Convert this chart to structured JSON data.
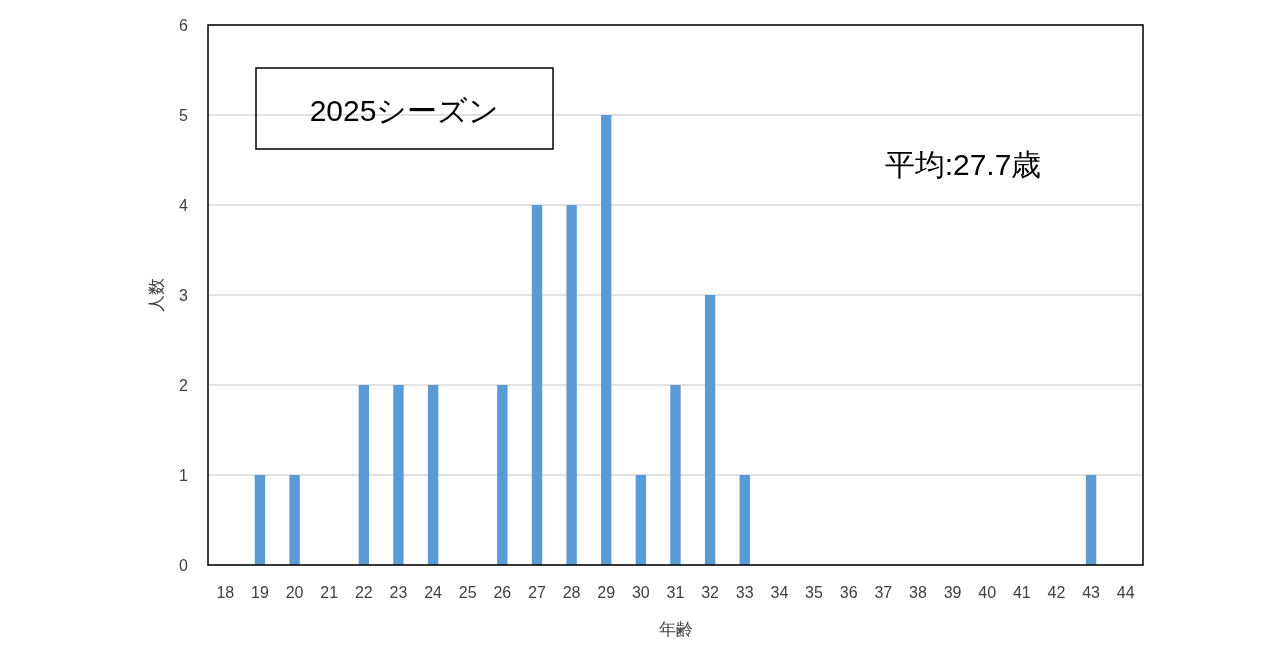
{
  "chart_data": {
    "type": "bar",
    "title": "2025シーズン",
    "xlabel": "年齢",
    "ylabel": "人数",
    "annotations": [
      "平均:27.7歳"
    ],
    "categories": [
      "18",
      "19",
      "20",
      "21",
      "22",
      "23",
      "24",
      "25",
      "26",
      "27",
      "28",
      "29",
      "30",
      "31",
      "32",
      "33",
      "34",
      "35",
      "36",
      "37",
      "38",
      "39",
      "40",
      "41",
      "42",
      "43",
      "44"
    ],
    "values": [
      0,
      1,
      1,
      0,
      2,
      2,
      2,
      0,
      2,
      4,
      4,
      5,
      1,
      2,
      3,
      1,
      0,
      0,
      0,
      0,
      0,
      0,
      0,
      0,
      0,
      1,
      0
    ],
    "color": "#5b9bd5",
    "ylim": [
      0,
      6
    ],
    "yticks": [
      0,
      1,
      2,
      3,
      4,
      5,
      6
    ],
    "grid": "y"
  }
}
